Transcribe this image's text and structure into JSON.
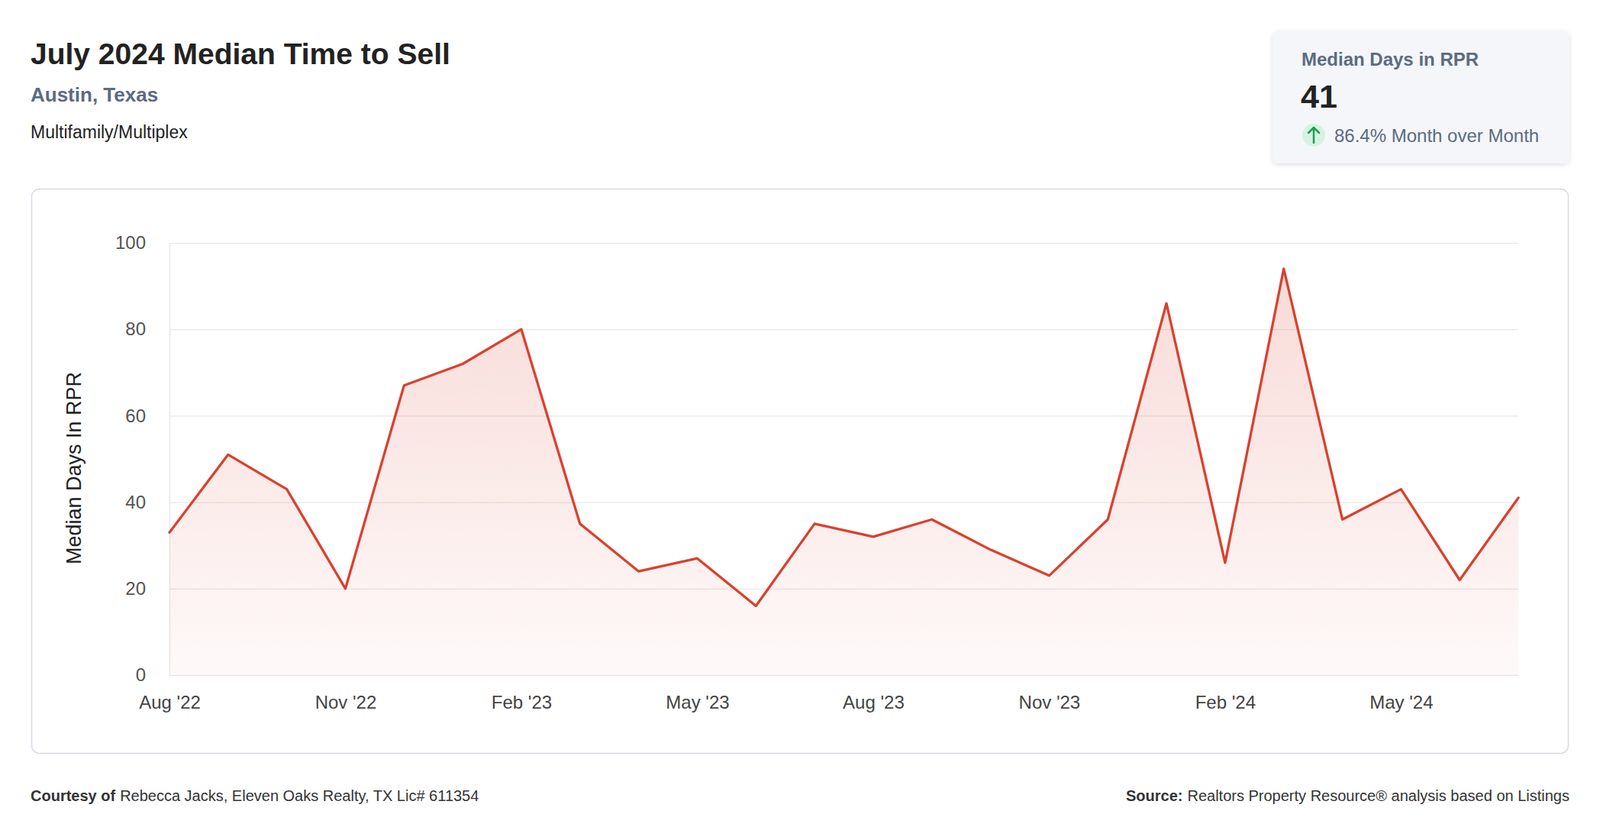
{
  "chart_data": {
    "type": "line",
    "title": "July 2024 Median Time to Sell",
    "subtitle": "Austin, Texas",
    "y_label": "Median Days In RPR",
    "categories": [
      "Aug '22",
      null,
      null,
      "Nov '22",
      null,
      null,
      "Feb '23",
      null,
      null,
      "May '23",
      null,
      null,
      "Aug '23",
      null,
      null,
      "Nov '23",
      null,
      null,
      "Feb '24",
      null,
      null,
      "May '24",
      null,
      null
    ],
    "values": [
      33,
      51,
      43,
      20,
      67,
      72,
      80,
      35,
      24,
      27,
      16,
      35,
      32,
      36,
      29,
      23,
      36,
      86,
      26,
      94,
      36,
      43,
      22,
      41
    ],
    "color": "#d9412e",
    "ylim": [
      0,
      100
    ],
    "yticks": [
      0,
      20,
      40,
      60,
      80,
      100
    ],
    "grid": true
  },
  "header": {
    "property_type": "Multifamily/Multiplex"
  },
  "kpi": {
    "label": "Median Days in RPR",
    "value": 41,
    "change": "86.4% Month over Month"
  },
  "footer": {
    "courtesy_label": "Courtesy of",
    "courtesy": "Rebecca Jacks, Eleven Oaks Realty, TX Lic# 611354",
    "source_label": "Source:",
    "source": "Realtors Property Resource® analysis based on Listings"
  }
}
